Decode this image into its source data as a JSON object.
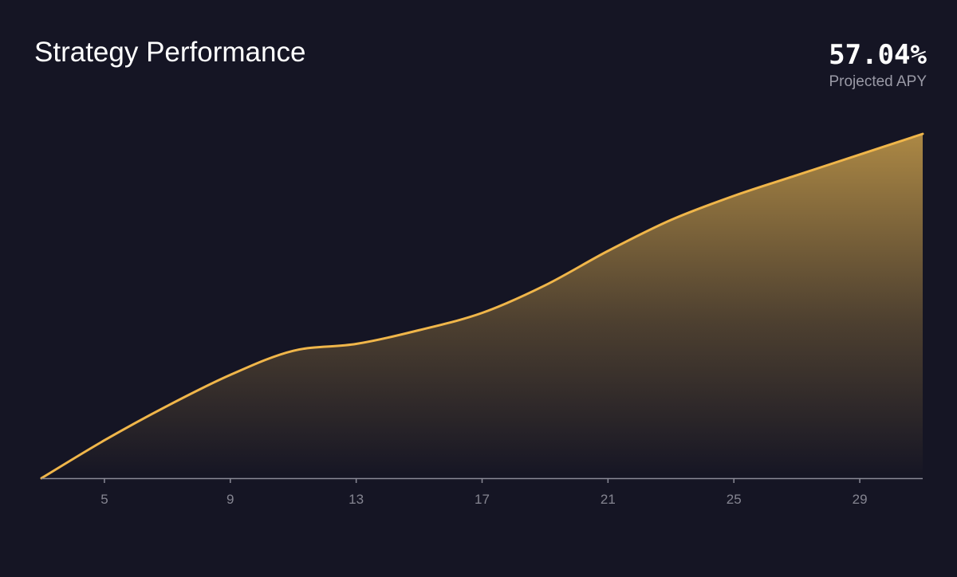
{
  "header": {
    "title": "Strategy Performance",
    "apy_value": "57.04%",
    "apy_label": "Projected APY"
  },
  "colors": {
    "background": "#151524",
    "line": "#f0b64a",
    "fill_top": "#b48e46",
    "axis": "#8a8a96",
    "tick_text": "#858591"
  },
  "chart_data": {
    "type": "area",
    "title": "",
    "xlabel": "",
    "ylabel": "",
    "xlim": [
      3,
      31
    ],
    "ylim": [
      0,
      100
    ],
    "x_ticks": [
      5,
      9,
      13,
      17,
      21,
      25,
      29
    ],
    "grid": false,
    "series": [
      {
        "x": [
          3,
          5,
          7,
          9,
          11,
          13,
          15,
          17,
          19,
          21,
          23,
          25,
          27,
          29,
          31
        ],
        "values": [
          0,
          11,
          21,
          30,
          37,
          39,
          43,
          48,
          56,
          66,
          75,
          82,
          88,
          94,
          100
        ]
      }
    ]
  }
}
